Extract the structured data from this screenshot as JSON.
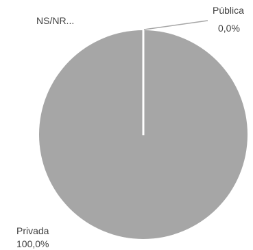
{
  "chart_data": {
    "type": "pie",
    "slices": [
      {
        "name": "Privada",
        "value": 100.0,
        "value_label": "100,0%",
        "color": "#a6a6a6"
      },
      {
        "name": "Pública",
        "value": 0.0,
        "value_label": "0,0%",
        "color": "#a6a6a6"
      },
      {
        "name": "NS/NR...",
        "value": 0.0,
        "value_label": "",
        "color": "#a6a6a6"
      }
    ],
    "separator_color": "#ffffff",
    "leader_line_color": "#a6a6a6",
    "legend": "none"
  }
}
